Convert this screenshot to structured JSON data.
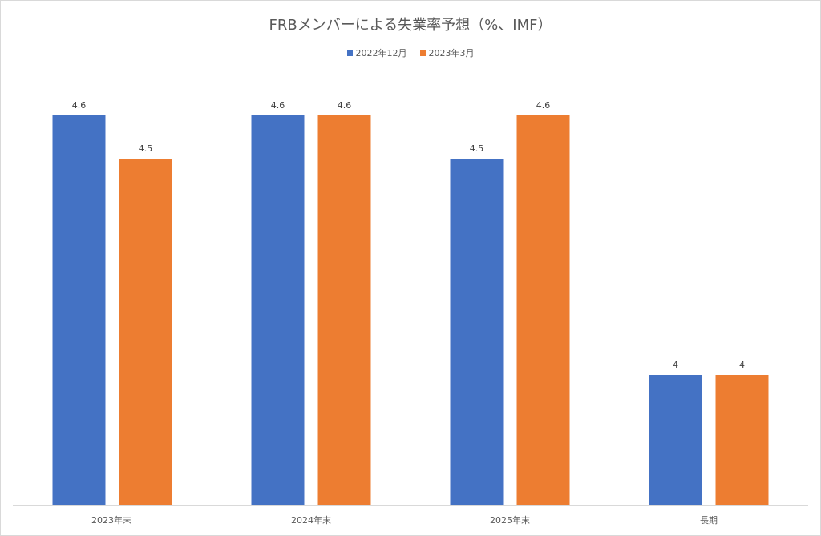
{
  "chart_data": {
    "type": "bar",
    "title": "FRBメンバーによる失業率予想（%、IMF）",
    "categories": [
      "2023年末",
      "2024年末",
      "2025年末",
      "長期"
    ],
    "series": [
      {
        "name": "2022年12月",
        "color": "#4472C4",
        "values": [
          4.6,
          4.6,
          4.5,
          4
        ]
      },
      {
        "name": "2023年3月",
        "color": "#ED7D31",
        "values": [
          4.5,
          4.6,
          4.6,
          4
        ]
      }
    ],
    "xlabel": "",
    "ylabel": "",
    "ylim": [
      3.7,
      4.7
    ],
    "grid": false,
    "legend": "top-center",
    "data_labels": true
  }
}
